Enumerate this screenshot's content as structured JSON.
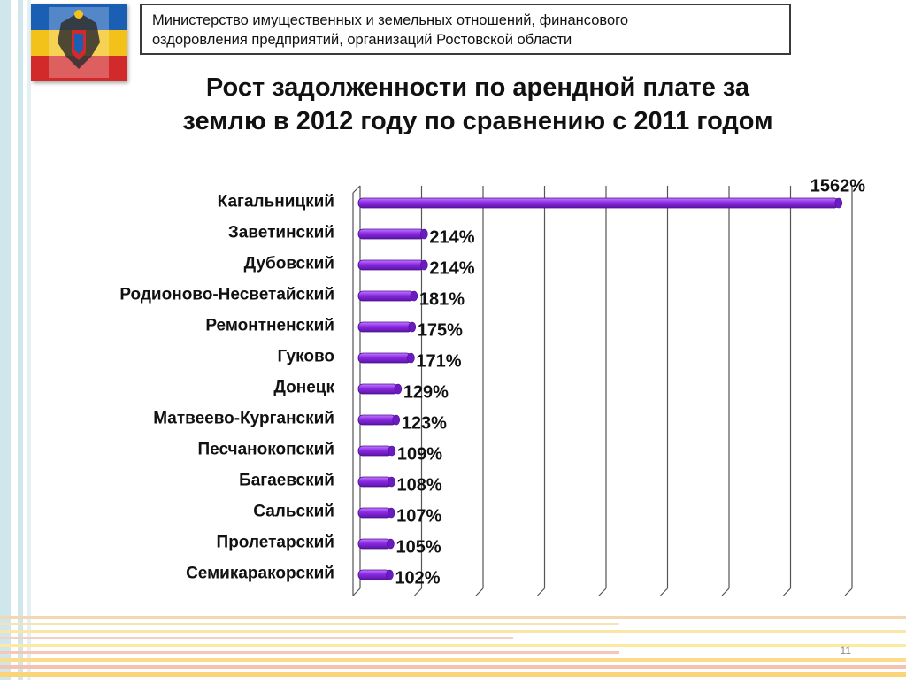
{
  "header": {
    "ministry_line1": "Министерство имущественных и земельных отношений, финансового",
    "ministry_line2": "оздоровления предприятий, организаций Ростовской области"
  },
  "title_line1": "Рост задолженности по арендной плате за",
  "title_line2": "землю в 2012 году по сравнению с 2011 годом",
  "page_number": "11",
  "colors": {
    "bar": "#8a2be2",
    "bar_light": "#c27bff",
    "bar_dark": "#5d14a8",
    "grid": "#555555",
    "accent_stripe": "#cfe6ea"
  },
  "chart_data": {
    "type": "bar",
    "orientation": "horizontal",
    "categories": [
      "Кагальницкий",
      "Заветинский",
      "Дубовский",
      "Родионово-Несветайский",
      "Ремонтненский",
      "Гуково",
      "Донецк",
      "Матвеево-Курганский",
      "Песчанокопский",
      "Багаевский",
      "Сальский",
      "Пролетарский",
      "Семикаракорский"
    ],
    "values": [
      1562,
      214,
      214,
      181,
      175,
      171,
      129,
      123,
      109,
      108,
      107,
      105,
      102
    ],
    "labels": [
      "1562%",
      "214%",
      "214%",
      "181%",
      "175%",
      "171%",
      "129%",
      "123%",
      "109%",
      "108%",
      "107%",
      "105%",
      "102%"
    ],
    "xlim": [
      0,
      1600
    ],
    "grid": true
  }
}
